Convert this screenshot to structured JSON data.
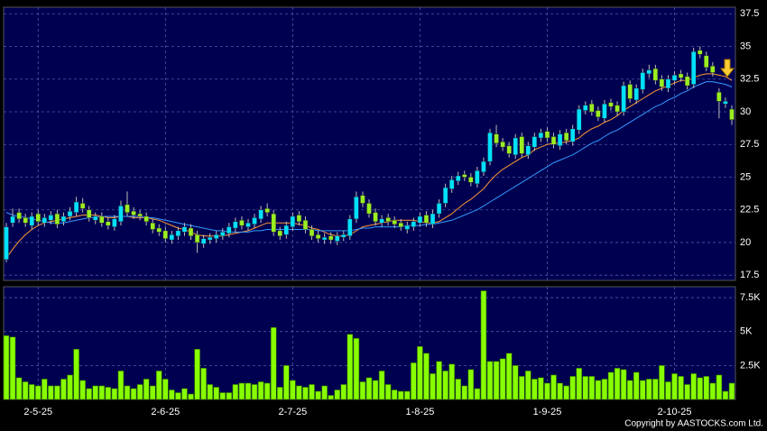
{
  "chart_data": [
    {
      "type": "candlestick",
      "categories": [
        null,
        null,
        null,
        null,
        null,
        "2-5-25",
        null,
        null,
        null,
        null,
        null,
        null,
        null,
        null,
        null,
        null,
        null,
        null,
        null,
        null,
        null,
        null,
        null,
        null,
        null,
        "2-6-25",
        null,
        null,
        null,
        null,
        null,
        null,
        null,
        null,
        null,
        null,
        null,
        null,
        null,
        null,
        null,
        null,
        null,
        null,
        null,
        "2-7-25",
        null,
        null,
        null,
        null,
        null,
        null,
        null,
        null,
        null,
        null,
        null,
        null,
        null,
        null,
        null,
        null,
        null,
        null,
        null,
        "1-8-25",
        null,
        null,
        null,
        null,
        null,
        null,
        null,
        null,
        null,
        null,
        null,
        null,
        null,
        null,
        null,
        null,
        null,
        null,
        null,
        "1-9-25",
        null,
        null,
        null,
        null,
        null,
        null,
        null,
        null,
        null,
        null,
        null,
        null,
        null,
        null,
        null,
        null,
        null,
        null,
        null,
        "2-10-25",
        null,
        null,
        null,
        null,
        null,
        null,
        null,
        null,
        null
      ],
      "open": [
        18.7,
        21.5,
        22.3,
        21.9,
        21.3,
        22.2,
        21.5,
        21.7,
        22.2,
        21.6,
        22.0,
        22.3,
        23.0,
        22.5,
        21.7,
        22.0,
        21.6,
        21.2,
        21.6,
        22.9,
        22.4,
        22.2,
        22.0,
        21.5,
        21.1,
        20.9,
        20.2,
        20.5,
        20.8,
        21.1,
        20.6,
        19.9,
        20.2,
        20.3,
        20.5,
        20.7,
        21.1,
        21.7,
        21.2,
        21.4,
        21.8,
        22.6,
        22.2,
        20.9,
        20.6,
        21.2,
        22.1,
        21.7,
        21.0,
        20.6,
        20.2,
        20.5,
        20.1,
        20.4,
        20.5,
        21.8,
        23.6,
        23.0,
        22.3,
        21.5,
        21.9,
        21.7,
        21.5,
        21.0,
        21.2,
        21.5,
        22.1,
        21.4,
        22.2,
        23.0,
        24.1,
        24.7,
        25.2,
        25.0,
        24.5,
        25.4,
        26.2,
        28.3,
        27.7,
        27.4,
        26.7,
        28.1,
        26.7,
        27.3,
        28.0,
        28.5,
        28.1,
        27.4,
        28.4,
        27.7,
        28.6,
        30.1,
        30.6,
        30.1,
        29.5,
        30.7,
        30.5,
        30.0,
        32.1,
        30.9,
        31.7,
        32.9,
        33.3,
        32.5,
        31.8,
        32.4,
        32.9,
        32.7,
        32.1,
        34.7,
        34.3,
        33.5,
        31.5,
        30.6,
        30.2
      ],
      "high": [
        21.5,
        22.6,
        22.6,
        22.2,
        22.3,
        22.5,
        22.2,
        22.4,
        22.5,
        22.3,
        22.7,
        23.5,
        23.4,
        22.8,
        22.3,
        22.3,
        21.9,
        22.1,
        23.2,
        23.9,
        22.7,
        22.5,
        22.3,
        21.8,
        21.4,
        21.2,
        20.9,
        21.2,
        21.5,
        21.4,
        20.9,
        20.6,
        20.7,
        20.9,
        21.1,
        21.5,
        21.9,
        22.0,
        21.8,
        22.2,
        22.8,
        23.0,
        22.5,
        21.2,
        21.6,
        22.3,
        22.4,
        22.0,
        21.3,
        20.9,
        20.7,
        20.8,
        20.8,
        20.9,
        22.1,
        23.9,
        23.9,
        23.3,
        22.6,
        22.1,
        22.2,
        22.0,
        21.8,
        21.6,
        21.9,
        22.3,
        22.4,
        22.5,
        23.3,
        24.5,
        25.1,
        25.4,
        25.5,
        25.3,
        25.8,
        26.5,
        28.7,
        29.0,
        28.0,
        27.7,
        28.3,
        28.4,
        27.7,
        28.4,
        28.7,
        28.8,
        28.4,
        28.6,
        28.7,
        29.0,
        30.5,
        30.8,
        30.9,
        30.4,
        30.9,
        31.0,
        30.8,
        32.3,
        32.4,
        32.1,
        33.3,
        33.6,
        33.6,
        32.8,
        32.8,
        33.1,
        33.2,
        33.0,
        34.9,
        35.0,
        34.6,
        33.8,
        31.8,
        31.1,
        30.5
      ],
      "low": [
        18.5,
        21.2,
        21.5,
        21.2,
        21.0,
        21.3,
        21.2,
        21.4,
        21.1,
        21.3,
        21.7,
        22.0,
        22.3,
        21.6,
        21.4,
        21.2,
        21.0,
        20.9,
        21.3,
        22.0,
        21.8,
        21.7,
        21.3,
        20.7,
        20.5,
        20.0,
        19.9,
        20.2,
        20.5,
        20.2,
        19.2,
        19.6,
        19.9,
        20.0,
        20.2,
        20.4,
        20.8,
        21.0,
        20.9,
        21.1,
        21.5,
        22.0,
        20.5,
        20.2,
        20.3,
        20.9,
        21.3,
        20.7,
        20.2,
        20.0,
        19.9,
        19.9,
        19.8,
        20.1,
        20.2,
        21.5,
        22.7,
        21.9,
        21.3,
        21.2,
        21.3,
        21.1,
        20.9,
        20.7,
        20.9,
        21.2,
        21.2,
        21.1,
        21.9,
        22.7,
        23.8,
        24.4,
        24.7,
        24.3,
        24.2,
        25.1,
        25.9,
        27.3,
        27.0,
        26.5,
        26.4,
        26.5,
        26.4,
        27.0,
        27.7,
        27.7,
        27.2,
        27.1,
        27.5,
        27.4,
        28.3,
        29.8,
        29.7,
        29.3,
        29.2,
        30.1,
        29.7,
        29.7,
        30.7,
        30.6,
        31.4,
        32.6,
        32.1,
        31.6,
        31.5,
        32.1,
        32.3,
        31.7,
        31.8,
        34.1,
        33.1,
        32.7,
        29.5,
        30.3,
        29.0
      ],
      "close": [
        21.2,
        22.0,
        21.8,
        21.5,
        22.0,
        21.6,
        21.9,
        22.1,
        21.4,
        22.0,
        22.4,
        23.1,
        22.6,
        21.9,
        22.0,
        21.5,
        21.3,
        21.8,
        22.8,
        22.3,
        22.1,
        22.0,
        21.6,
        21.0,
        20.8,
        20.3,
        20.6,
        20.9,
        21.2,
        20.5,
        20.0,
        20.3,
        20.4,
        20.6,
        20.8,
        21.2,
        21.6,
        21.3,
        21.5,
        21.9,
        22.5,
        22.3,
        20.8,
        20.5,
        21.3,
        22.0,
        21.6,
        21.0,
        20.5,
        20.3,
        20.4,
        20.2,
        20.5,
        20.6,
        21.8,
        23.5,
        23.0,
        22.2,
        21.6,
        21.8,
        21.6,
        21.4,
        21.2,
        21.3,
        21.6,
        22.0,
        21.5,
        22.2,
        23.0,
        24.2,
        24.8,
        25.1,
        25.0,
        24.6,
        25.5,
        26.2,
        28.4,
        27.6,
        27.3,
        26.8,
        28.0,
        26.8,
        27.4,
        28.1,
        28.4,
        28.0,
        27.5,
        28.3,
        27.8,
        28.7,
        30.2,
        30.5,
        30.0,
        29.6,
        30.6,
        30.4,
        30.0,
        32.0,
        31.0,
        31.8,
        33.0,
        33.2,
        32.4,
        31.9,
        32.5,
        32.8,
        32.6,
        32.0,
        34.6,
        34.4,
        33.4,
        33.0,
        30.8,
        30.8,
        29.4
      ],
      "up_color": "#00e0ff",
      "down_color": "#99ee22",
      "series": [
        {
          "color": "#ff9933",
          "values": [
            18.8,
            19.5,
            20.1,
            20.6,
            21.0,
            21.3,
            21.5,
            21.6,
            21.7,
            21.8,
            21.9,
            22.0,
            22.1,
            22.1,
            22.1,
            22.0,
            21.9,
            21.9,
            22.0,
            22.0,
            21.9,
            21.9,
            21.9,
            21.8,
            21.7,
            21.5,
            21.3,
            21.1,
            21.0,
            20.8,
            20.6,
            20.5,
            20.5,
            20.5,
            20.5,
            20.6,
            20.7,
            20.8,
            20.9,
            21.1,
            21.3,
            21.5,
            21.5,
            21.5,
            21.5,
            21.5,
            21.4,
            21.3,
            21.1,
            21.0,
            20.8,
            20.6,
            20.5,
            20.5,
            20.6,
            20.9,
            21.2,
            21.3,
            21.4,
            21.5,
            21.6,
            21.7,
            21.7,
            21.7,
            21.7,
            21.6,
            21.5,
            21.5,
            21.6,
            21.9,
            22.2,
            22.6,
            23.0,
            23.3,
            23.7,
            24.1,
            24.7,
            25.2,
            25.6,
            25.9,
            26.2,
            26.5,
            26.7,
            27.1,
            27.3,
            27.5,
            27.6,
            27.6,
            27.7,
            27.8,
            28.0,
            28.4,
            28.7,
            28.9,
            29.2,
            29.4,
            29.7,
            30.1,
            30.4,
            30.7,
            31.0,
            31.3,
            31.6,
            31.8,
            32.0,
            32.2,
            32.4,
            32.4,
            32.6,
            32.8,
            32.9,
            32.9,
            32.8,
            32.7,
            32.4
          ]
        },
        {
          "color": "#3399ff",
          "values": [
            22.3,
            22.1,
            22.0,
            21.9,
            21.8,
            21.7,
            21.6,
            21.5,
            21.5,
            21.5,
            21.6,
            21.7,
            21.8,
            21.9,
            21.9,
            22.0,
            22.0,
            22.0,
            22.0,
            22.0,
            22.0,
            22.0,
            21.9,
            21.9,
            21.8,
            21.7,
            21.6,
            21.5,
            21.4,
            21.3,
            21.2,
            21.1,
            21.0,
            20.9,
            20.9,
            20.8,
            20.8,
            20.8,
            20.8,
            20.9,
            20.9,
            21.0,
            21.0,
            21.0,
            21.0,
            21.0,
            21.0,
            21.0,
            21.0,
            20.9,
            20.9,
            20.9,
            20.9,
            20.9,
            20.9,
            21.0,
            21.1,
            21.1,
            21.2,
            21.2,
            21.2,
            21.2,
            21.2,
            21.3,
            21.3,
            21.3,
            21.4,
            21.4,
            21.5,
            21.6,
            21.7,
            21.9,
            22.1,
            22.3,
            22.5,
            22.8,
            23.1,
            23.4,
            23.7,
            24.0,
            24.3,
            24.6,
            24.9,
            25.2,
            25.5,
            25.8,
            26.1,
            26.3,
            26.5,
            26.7,
            27.0,
            27.3,
            27.6,
            27.8,
            28.1,
            28.4,
            28.6,
            28.9,
            29.2,
            29.5,
            29.8,
            30.1,
            30.4,
            30.6,
            30.9,
            31.1,
            31.4,
            31.6,
            31.9,
            32.1,
            32.3,
            32.3,
            32.2,
            32.1,
            31.9
          ]
        }
      ],
      "ylim": [
        17.1,
        38
      ],
      "yticks": [
        17.5,
        20,
        22.5,
        25,
        27.5,
        30,
        32.5,
        35,
        37.5
      ],
      "grid": true
    },
    {
      "type": "bar",
      "color": "#88ff00",
      "values": [
        4700,
        4600,
        1600,
        1300,
        1100,
        1000,
        1500,
        1000,
        1000,
        1500,
        1800,
        3700,
        1400,
        800,
        1000,
        1000,
        900,
        800,
        2100,
        1000,
        800,
        1100,
        1500,
        1000,
        2100,
        1500,
        700,
        500,
        800,
        400,
        3700,
        2300,
        1100,
        900,
        500,
        500,
        1100,
        1200,
        1200,
        1100,
        1300,
        1200,
        5300,
        900,
        2500,
        1400,
        1000,
        900,
        1100,
        600,
        1000,
        300,
        700,
        1100,
        4800,
        4500,
        1300,
        1600,
        1400,
        2100,
        1100,
        700,
        600,
        600,
        2700,
        3900,
        3400,
        1900,
        2800,
        2100,
        2600,
        1500,
        1000,
        2200,
        800,
        8000,
        2800,
        2800,
        3000,
        3400,
        2500,
        1700,
        2100,
        1500,
        1600,
        1200,
        1800,
        1200,
        1000,
        1700,
        2300,
        1700,
        1700,
        1400,
        1500,
        2000,
        2300,
        2200,
        1400,
        2000,
        1400,
        1500,
        1500,
        2500,
        1300,
        1900,
        1700,
        1100,
        1900,
        1600,
        1700,
        1200,
        1800,
        600,
        1200
      ],
      "ylim": [
        0,
        8300
      ],
      "yticks": [
        {
          "value": 2500,
          "label": "2.5K"
        },
        {
          "value": 5000,
          "label": "5K"
        },
        {
          "value": 7500,
          "label": "7.5K"
        }
      ],
      "grid": true
    }
  ],
  "copyright": "Copyright by AASTOCKS.com Ltd."
}
